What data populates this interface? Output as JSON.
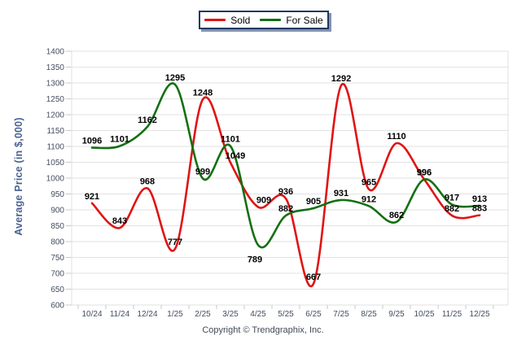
{
  "chart_data": {
    "type": "line",
    "title": "",
    "ylabel": "Average Price (in $,000)",
    "xlabel": "",
    "ylim": [
      600,
      1400
    ],
    "ytick_step": 50,
    "grid": "horizontal",
    "legend_position": "top-center",
    "categories": [
      "10/24",
      "11/24",
      "12/24",
      "1/25",
      "2/25",
      "3/25",
      "4/25",
      "5/25",
      "6/25",
      "7/25",
      "8/25",
      "9/25",
      "10/25",
      "11/25",
      "12/25"
    ],
    "series": [
      {
        "name": "Sold",
        "color": "#e01414",
        "values": [
          921,
          843,
          968,
          777,
          1248,
          1049,
          909,
          936,
          667,
          1292,
          965,
          1110,
          996,
          882,
          883
        ]
      },
      {
        "name": "For Sale",
        "color": "#127012",
        "values": [
          1096,
          1101,
          1162,
          1295,
          999,
          1101,
          789,
          882,
          905,
          931,
          912,
          862,
          996,
          917,
          913
        ]
      }
    ]
  },
  "footer": {
    "copyright": "Copyright © Trendgraphix, Inc."
  },
  "style_colors": {
    "gridline": "#e2e2e2",
    "tick_mark": "#c9c9c9",
    "tick_text": "#434e60",
    "data_label": "#000000",
    "legend_border": "#1f3864",
    "legend_shadow": "#8693ae"
  }
}
